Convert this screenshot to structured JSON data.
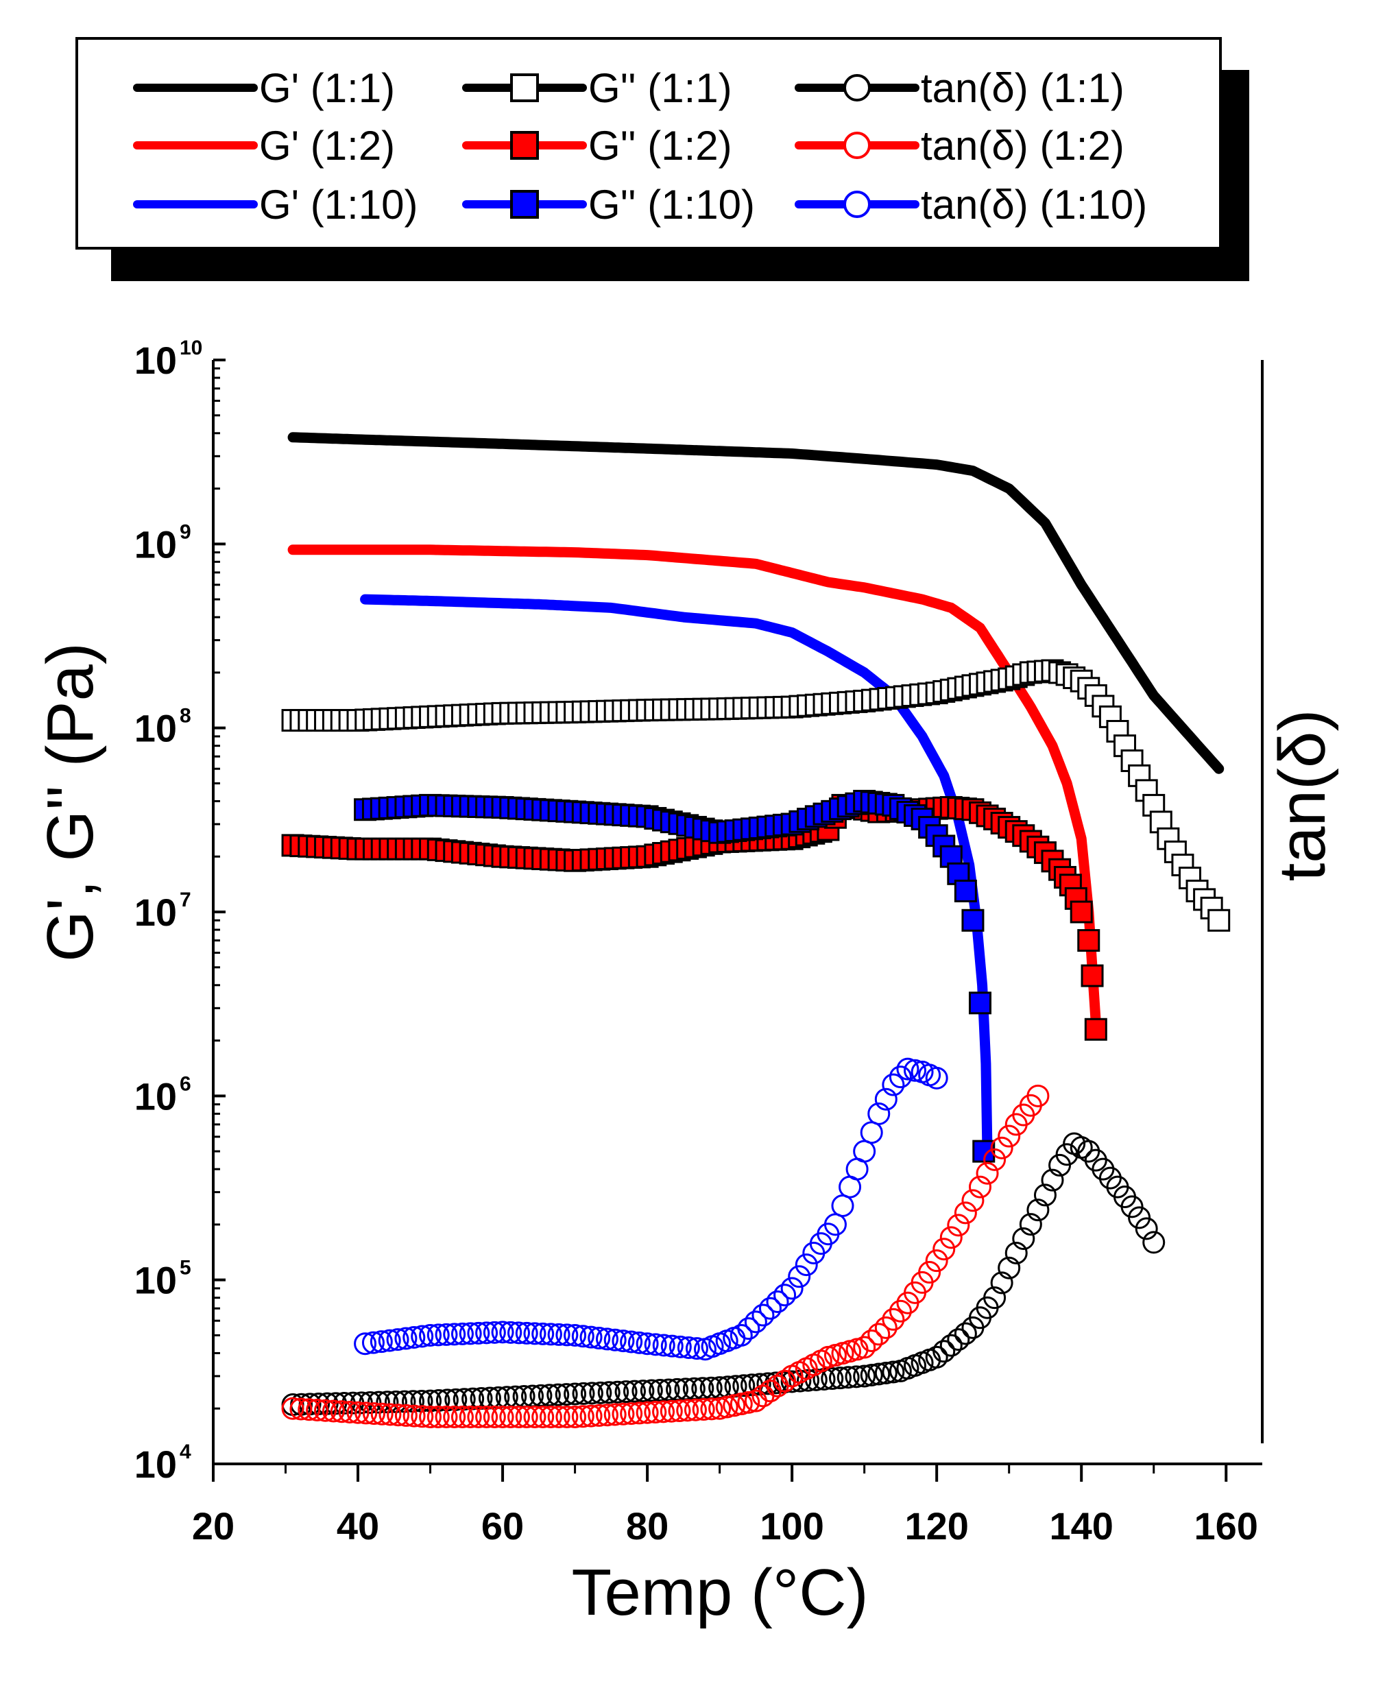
{
  "chart_data": {
    "type": "scatter",
    "title": "",
    "xlabel": "Temp (°C)",
    "ylabel": "G', G'' (Pa)",
    "y2label": "tan(δ)",
    "xlim": [
      20,
      165
    ],
    "ylim_log10": [
      4,
      10
    ],
    "y_scale": "log",
    "legend_placement": "top, above plot",
    "x_ticks": [
      20,
      40,
      60,
      80,
      100,
      120,
      140,
      160
    ],
    "x_tick_labels": [
      "20",
      "40",
      "60",
      "80",
      "100",
      "120",
      "140",
      "160"
    ],
    "y_ticks": [
      {
        "base": "10",
        "exp": "4"
      },
      {
        "base": "10",
        "exp": "5"
      },
      {
        "base": "10",
        "exp": "6"
      },
      {
        "base": "10",
        "exp": "7"
      },
      {
        "base": "10",
        "exp": "8"
      },
      {
        "base": "10",
        "exp": "9"
      },
      {
        "base": "10",
        "exp": "10"
      }
    ],
    "colors": {
      "1:1": "#000000",
      "1:2": "#ff0000",
      "1:10": "#0000ff"
    },
    "series": [
      {
        "name": "G' (1:1)",
        "kind": "line",
        "color": "#000000",
        "x": [
          31,
          40,
          60,
          80,
          100,
          110,
          120,
          125,
          130,
          135,
          140,
          145,
          150,
          155,
          159
        ],
        "y": [
          3800000000.0,
          3700000000.0,
          3500000000.0,
          3300000000.0,
          3100000000.0,
          2900000000.0,
          2700000000.0,
          2500000000.0,
          2000000000.0,
          1300000000.0,
          600000000.0,
          300000000.0,
          150000000.0,
          90000000.0,
          60000000.0
        ]
      },
      {
        "name": "G' (1:2)",
        "kind": "line",
        "color": "#ff0000",
        "x": [
          31,
          50,
          70,
          80,
          95,
          105,
          110,
          118,
          122,
          126,
          130,
          133,
          136,
          138,
          140,
          141,
          141.5,
          142
        ],
        "y": [
          930000000.0,
          930000000.0,
          900000000.0,
          870000000.0,
          780000000.0,
          620000000.0,
          580000000.0,
          500000000.0,
          450000000.0,
          350000000.0,
          200000000.0,
          130000000.0,
          80000000.0,
          50000000.0,
          25000000.0,
          10000000.0,
          5000000.0,
          2500000.0
        ]
      },
      {
        "name": "G' (1:10)",
        "kind": "line",
        "color": "#0000ff",
        "x": [
          41,
          50,
          65,
          75,
          85,
          95,
          100,
          105,
          110,
          114,
          118,
          121,
          123,
          124.5,
          125.5,
          126.3,
          126.8,
          127
        ],
        "y": [
          500000000.0,
          490000000.0,
          470000000.0,
          450000000.0,
          400000000.0,
          370000000.0,
          330000000.0,
          260000000.0,
          200000000.0,
          150000000.0,
          90000000.0,
          55000000.0,
          32000000.0,
          18000000.0,
          9000000.0,
          4000000.0,
          1500000.0,
          500000.0
        ]
      },
      {
        "name": "G'' (1:1)",
        "kind": "square-open",
        "color": "#000000",
        "x": [
          31,
          40,
          50,
          60,
          70,
          80,
          90,
          100,
          110,
          120,
          125,
          130,
          133,
          136,
          138,
          140,
          142,
          144,
          146,
          148,
          150,
          152,
          154,
          156,
          158,
          159
        ],
        "y": [
          110000000.0,
          110000000.0,
          115000000.0,
          120000000.0,
          122000000.0,
          125000000.0,
          127000000.0,
          130000000.0,
          140000000.0,
          155000000.0,
          170000000.0,
          185000000.0,
          200000000.0,
          205000000.0,
          195000000.0,
          180000000.0,
          150000000.0,
          115000000.0,
          80000000.0,
          55000000.0,
          38000000.0,
          25000000.0,
          18000000.0,
          13000000.0,
          10500000.0,
          9000000.0
        ]
      },
      {
        "name": "G'' (1:2)",
        "kind": "square-filled",
        "color": "#ff0000",
        "x": [
          31,
          40,
          50,
          60,
          70,
          80,
          90,
          100,
          105,
          107,
          112,
          118,
          122,
          125,
          128,
          132,
          135,
          137,
          138.5,
          140,
          141,
          141.5,
          142
        ],
        "y": [
          23000000.0,
          22000000.0,
          22000000.0,
          20000000.0,
          19000000.0,
          20000000.0,
          24000000.0,
          25000000.0,
          28000000.0,
          38000000.0,
          35000000.0,
          36000000.0,
          37000000.0,
          36000000.0,
          32000000.0,
          26000000.0,
          21000000.0,
          17000000.0,
          14000000.0,
          10000000.0,
          7000000.0,
          4500000.0,
          2300000.0
        ]
      },
      {
        "name": "G'' (1:10)",
        "kind": "square-filled",
        "color": "#0000ff",
        "x": [
          41,
          50,
          60,
          70,
          80,
          90,
          100,
          110,
          114,
          118,
          120,
          122,
          124,
          125,
          126,
          126.5
        ],
        "y": [
          36000000.0,
          38000000.0,
          37000000.0,
          35000000.0,
          33000000.0,
          27000000.0,
          30000000.0,
          40000000.0,
          38000000.0,
          32000000.0,
          26000000.0,
          20000000.0,
          13000000.0,
          9000000.0,
          3200000.0,
          500000.0
        ]
      },
      {
        "name": "tan(δ) (1:1)",
        "kind": "circle-open",
        "color": "#000000",
        "x": [
          31,
          50,
          70,
          90,
          100,
          110,
          115,
          120,
          125,
          128,
          131,
          134,
          137,
          139,
          141,
          143,
          145,
          147,
          149,
          150
        ],
        "y": [
          21000.0,
          22000.0,
          24000.0,
          26000.0,
          28000.0,
          30000.0,
          32000.0,
          38000.0,
          55000.0,
          80000.0,
          140000.0,
          240000.0,
          420000.0,
          550000.0,
          500000.0,
          400000.0,
          320000.0,
          250000.0,
          190000.0,
          160000.0
        ]
      },
      {
        "name": "tan(δ) (1:2)",
        "kind": "circle-open",
        "color": "#ff0000",
        "x": [
          31,
          40,
          50,
          60,
          70,
          80,
          90,
          95,
          100,
          105,
          110,
          113,
          116,
          119,
          122,
          125,
          128,
          131,
          134
        ],
        "y": [
          20000.0,
          19000.0,
          18000.0,
          18000.0,
          18000.0,
          19000.0,
          20000.0,
          22000.0,
          30000.0,
          38000.0,
          43000.0,
          55000.0,
          75000.0,
          110000.0,
          170000.0,
          270000.0,
          450000.0,
          700000.0,
          1000000.0
        ]
      },
      {
        "name": "tan(δ) (1:10)",
        "kind": "circle-open",
        "color": "#0000ff",
        "x": [
          41,
          50,
          60,
          70,
          80,
          88,
          93,
          97,
          100,
          103,
          106,
          108,
          110,
          112,
          114,
          116,
          118,
          120
        ],
        "y": [
          45000.0,
          50000.0,
          52000.0,
          50000.0,
          45000.0,
          42000.0,
          50000.0,
          70000.0,
          90000.0,
          140000.0,
          200000.0,
          320000.0,
          500000.0,
          800000.0,
          1150000.0,
          1400000.0,
          1350000.0,
          1250000.0
        ]
      }
    ]
  }
}
